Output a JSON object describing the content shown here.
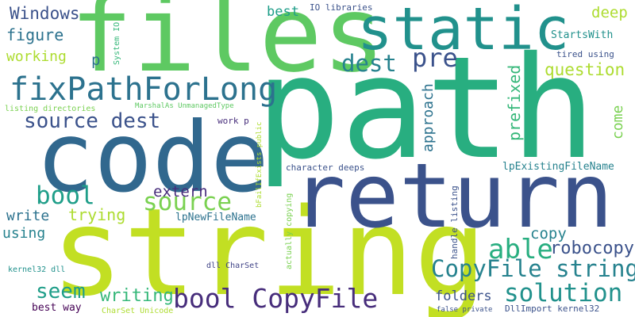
{
  "palette": {
    "background": "#ffffff",
    "lime": "#c2df23",
    "yellowgreen": "#addc30",
    "green": "#5ec962",
    "green_light": "#7ad151",
    "teal_green": "#28ae80",
    "teal": "#1f9e89",
    "teal_dark": "#21918c",
    "blue_teal": "#26828e",
    "blue": "#2c728e",
    "slate": "#3b528b",
    "indigo": "#414487",
    "purple": "#472d7b",
    "dark_purple": "#440154"
  },
  "words": [
    {
      "text": "path",
      "color": "#28ae80"
    },
    {
      "text": "string",
      "color": "#c2df23"
    },
    {
      "text": "files",
      "color": "#5ec962"
    },
    {
      "text": "return",
      "color": "#3b528b"
    },
    {
      "text": "code",
      "color": "#31688e"
    },
    {
      "text": "static",
      "color": "#21918c"
    },
    {
      "text": "fixPathForLong",
      "color": "#2c728e"
    },
    {
      "text": "bool CopyFile",
      "color": "#472d7b"
    },
    {
      "text": "source dest",
      "color": "#3b528b"
    },
    {
      "text": "CopyFile string",
      "color": "#26828e"
    },
    {
      "text": "source",
      "color": "#7ad151"
    },
    {
      "text": "solution",
      "color": "#21918c"
    },
    {
      "text": "dest",
      "color": "#26828e"
    },
    {
      "text": "pre",
      "color": "#3b528b"
    },
    {
      "text": "bool",
      "color": "#1f9e89"
    },
    {
      "text": "able",
      "color": "#28ae80"
    },
    {
      "text": "Windows",
      "color": "#3b528b"
    },
    {
      "text": "figure",
      "color": "#2c728e"
    },
    {
      "text": "working",
      "color": "#addc30"
    },
    {
      "text": "seem",
      "color": "#1f9e89"
    },
    {
      "text": "writing",
      "color": "#35b779"
    },
    {
      "text": "robocopy",
      "color": "#3b528b"
    },
    {
      "text": "copy",
      "color": "#26828e"
    },
    {
      "text": "question",
      "color": "#addc30"
    },
    {
      "text": "deep",
      "color": "#addc30"
    },
    {
      "text": "trying",
      "color": "#addc30"
    },
    {
      "text": "extern",
      "color": "#472d7b"
    },
    {
      "text": "write",
      "color": "#2c728e"
    },
    {
      "text": "using",
      "color": "#26828e"
    },
    {
      "text": "folders",
      "color": "#3b528b"
    },
    {
      "text": "approach",
      "color": "#2c728e"
    },
    {
      "text": "prefixed",
      "color": "#35b779"
    },
    {
      "text": "come",
      "color": "#7ad151"
    },
    {
      "text": "best",
      "color": "#1f9e89"
    },
    {
      "text": "p",
      "color": "#2c728e"
    },
    {
      "text": "IO libraries",
      "color": "#3b528b"
    },
    {
      "text": "StartsWith",
      "color": "#21918c"
    },
    {
      "text": "tired using",
      "color": "#3b528b"
    },
    {
      "text": "System IO",
      "color": "#35b779"
    },
    {
      "text": "listing directories",
      "color": "#7ad151"
    },
    {
      "text": "MarshalAs UnmanagedType",
      "color": "#5ec962"
    },
    {
      "text": "work p",
      "color": "#472d7b"
    },
    {
      "text": "bFailIfExists public",
      "color": "#addc30"
    },
    {
      "text": "character deeps",
      "color": "#3b528b"
    },
    {
      "text": "lpExistingFileName",
      "color": "#26828e"
    },
    {
      "text": "lpNewFileName",
      "color": "#2c728e"
    },
    {
      "text": "handle listing",
      "color": "#3b528b"
    },
    {
      "text": "actually copying",
      "color": "#7ad151"
    },
    {
      "text": "kernel32 dll",
      "color": "#21918c"
    },
    {
      "text": "dll CharSet",
      "color": "#414487"
    },
    {
      "text": "best way",
      "color": "#440154"
    },
    {
      "text": "CharSet Unicode",
      "color": "#addc30"
    },
    {
      "text": "false private",
      "color": "#3b528b"
    },
    {
      "text": "DllImport kernel32",
      "color": "#3b528b"
    }
  ]
}
